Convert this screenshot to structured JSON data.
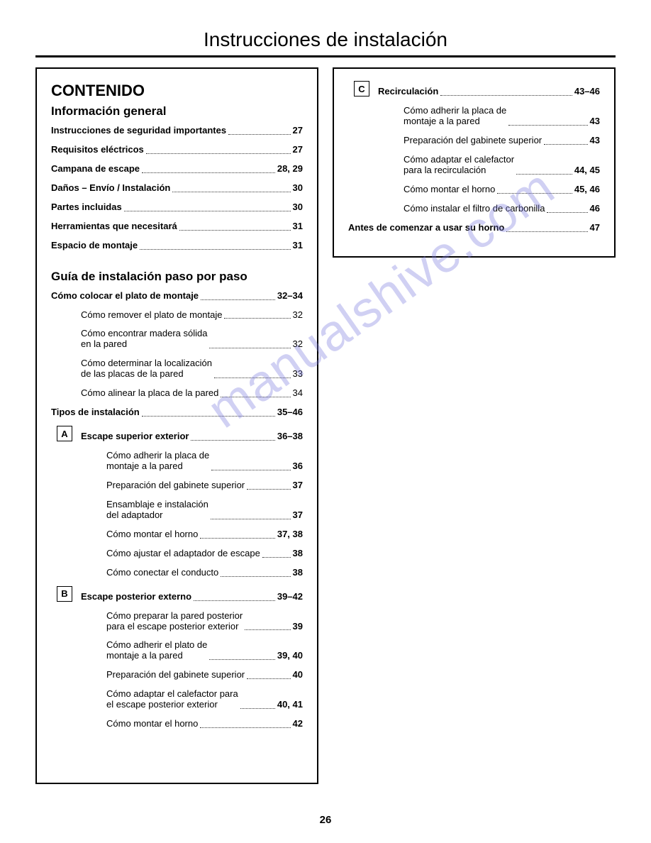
{
  "title": "Instrucciones de instalación",
  "page_number": "26",
  "watermark": "manualshive.com",
  "left": {
    "heading": "CONTENIDO",
    "section1": {
      "heading": "Información general",
      "items": [
        {
          "text": "Instrucciones de seguridad importantes",
          "page": "27",
          "bold": true
        },
        {
          "text": "Requisitos eléctricos",
          "page": "27",
          "bold": true
        },
        {
          "text": "Campana de escape",
          "page": "28, 29",
          "bold": true
        },
        {
          "text": "Daños – Envío / Instalación",
          "page": "30",
          "bold": true
        },
        {
          "text": "Partes incluidas",
          "page": "30",
          "bold": true
        },
        {
          "text": "Herramientas que necesitará",
          "page": "31",
          "bold": true
        },
        {
          "text": "Espacio de montaje",
          "page": "31",
          "bold": true
        }
      ]
    },
    "section2": {
      "heading": "Guía de instalación paso por paso",
      "item_main": {
        "text": "Cómo colocar el plato de montaje",
        "page": "32–34",
        "bold": true
      },
      "subs1": [
        {
          "text": "Cómo remover el plato de montaje",
          "page": "32"
        },
        {
          "text": "Cómo encontrar madera sólida\nen la pared",
          "page": "32"
        },
        {
          "text": "Cómo determinar la localización\nde las placas de la pared",
          "page": "33"
        },
        {
          "text": "Cómo alinear la placa de la pared",
          "page": "34"
        }
      ],
      "item_tipos": {
        "text": "Tipos de instalación",
        "page": "35–46",
        "bold": true
      },
      "A": {
        "letter": "A",
        "head": {
          "text": "Escape superior exterior",
          "page": "36–38",
          "bold": true
        },
        "subs": [
          {
            "text": "Cómo adherir la placa de\nmontaje a la pared",
            "page": "36"
          },
          {
            "text": "Preparación del gabinete superior",
            "page": "37"
          },
          {
            "text": "Ensamblaje e instalación\ndel adaptador",
            "page": "37"
          },
          {
            "text": "Cómo montar el horno",
            "page": "37, 38"
          },
          {
            "text": "Cómo ajustar el adaptador de escape",
            "page": "38"
          },
          {
            "text": "Cómo conectar el conducto",
            "page": "38"
          }
        ]
      },
      "B": {
        "letter": "B",
        "head": {
          "text": "Escape posterior externo",
          "page": "39–42",
          "bold": true
        },
        "subs": [
          {
            "text": "Cómo preparar la pared posterior\npara el escape posterior exterior",
            "page": "39"
          },
          {
            "text": "Cómo adherir el plato de\nmontaje a la pared",
            "page": "39, 40"
          },
          {
            "text": "Preparación del gabinete superior",
            "page": "40"
          },
          {
            "text": "Cómo adaptar el calefactor para\nel escape posterior exterior",
            "page": "40, 41"
          },
          {
            "text": "Cómo montar el horno",
            "page": "42"
          }
        ]
      }
    }
  },
  "right": {
    "C": {
      "letter": "C",
      "head": {
        "text": "Recirculación",
        "page": "43–46",
        "bold": true
      },
      "subs": [
        {
          "text": "Cómo adherir la placa de\nmontaje a la pared",
          "page": "43"
        },
        {
          "text": "Preparación del gabinete superior",
          "page": "43"
        },
        {
          "text": "Cómo adaptar el calefactor\npara la recirculación",
          "page": "44, 45"
        },
        {
          "text": "Cómo montar el horno",
          "page": "45, 46"
        },
        {
          "text": "Cómo instalar el filtro de carbonilla",
          "page": "46"
        }
      ]
    },
    "final": {
      "text": "Antes de comenzar a usar su horno",
      "page": "47",
      "bold": true
    }
  }
}
